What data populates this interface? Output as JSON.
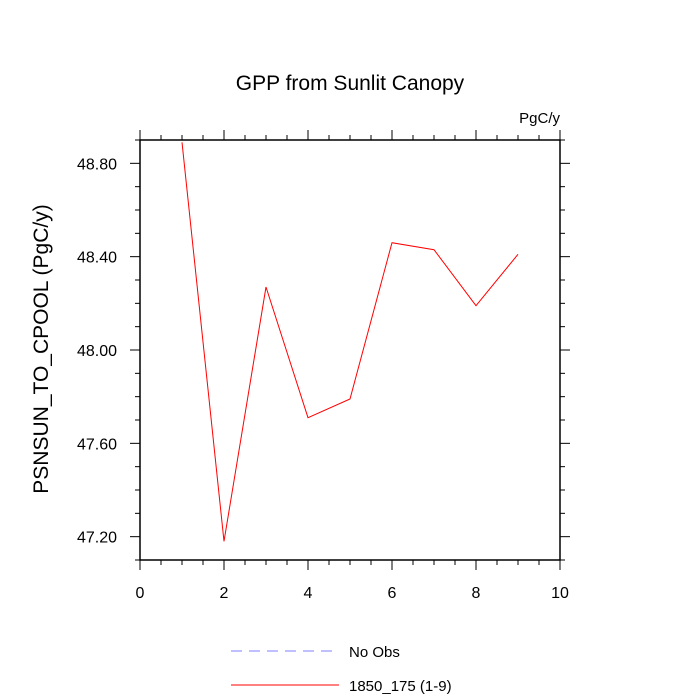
{
  "chart_data": {
    "type": "line",
    "title": "GPP from Sunlit Canopy",
    "units_label": "PgC/y",
    "ylabel": "PSNSUN_TO_CPOOL  (PgC/y)",
    "xlabel": "",
    "xlim": [
      0,
      10
    ],
    "ylim": [
      47.1,
      48.9
    ],
    "x_ticks": [
      0,
      2,
      4,
      6,
      8,
      10
    ],
    "x_tick_labels": [
      "0",
      "2",
      "4",
      "6",
      "8",
      "10"
    ],
    "y_ticks": [
      47.2,
      47.6,
      48.0,
      48.4,
      48.8
    ],
    "y_tick_labels": [
      "47.20",
      "47.60",
      "48.00",
      "48.40",
      "48.80"
    ],
    "grid": false,
    "legend_position": "bottom-center",
    "series": [
      {
        "name": "1850_175 (1-9)",
        "color": "#ff0000",
        "dash": "solid",
        "x": [
          1,
          2,
          3,
          4,
          5,
          6,
          7,
          8,
          9
        ],
        "y": [
          48.89,
          47.18,
          48.27,
          47.71,
          47.79,
          48.46,
          48.43,
          48.19,
          48.41
        ]
      }
    ],
    "legend": [
      {
        "name": "No Obs",
        "color": "#8080ff",
        "dash": "dashed"
      },
      {
        "name": "1850_175 (1-9)",
        "color": "#ff0000",
        "dash": "solid"
      }
    ]
  }
}
